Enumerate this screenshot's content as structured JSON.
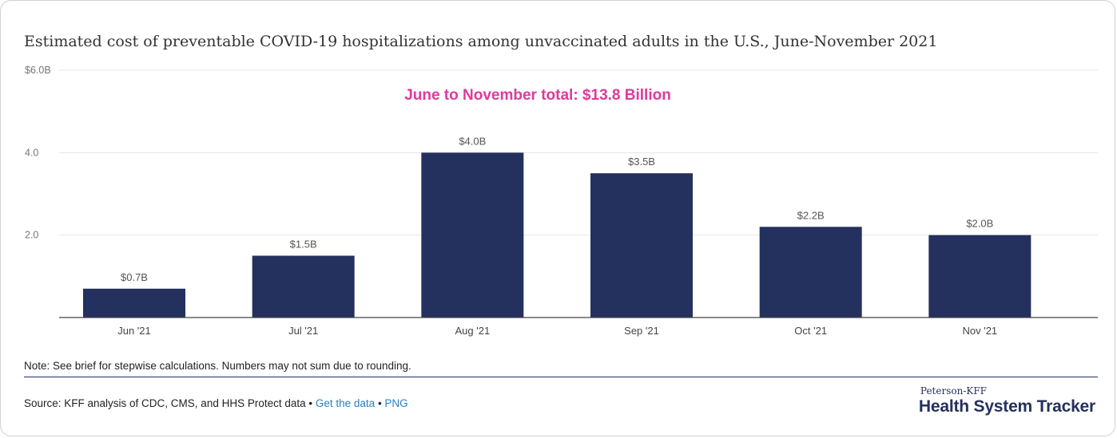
{
  "title": "Estimated cost of preventable COVID-19 hospitalizations among unvaccinated adults in the U.S., June-November 2021",
  "note": "Note: See brief for stepwise calculations. Numbers may not sum due to rounding.",
  "source": {
    "prefix": "Source: KFF analysis of CDC, CMS, and HHS Protect data",
    "sep1": " • ",
    "get_data_label": "Get the data",
    "sep2": " • ",
    "png_label": "PNG"
  },
  "brand": {
    "top": "Peterson-KFF",
    "main": "Health System Tracker"
  },
  "colors": {
    "bar": "#24305e",
    "annotation": "#e0399b",
    "grid": "#e6e6e6",
    "axis": "#444444",
    "tick_text": "#777777"
  },
  "chart_data": {
    "type": "bar",
    "categories": [
      "Jun '21",
      "Jul '21",
      "Aug '21",
      "Sep '21",
      "Oct '21",
      "Nov '21"
    ],
    "values": [
      0.7,
      1.5,
      4.0,
      3.5,
      2.2,
      2.0
    ],
    "data_labels": [
      "$0.7B",
      "$1.5B",
      "$4.0B",
      "$3.5B",
      "$2.2B",
      "$2.0B"
    ],
    "ylim": [
      0,
      6
    ],
    "yticks": [
      2,
      4,
      6
    ],
    "ytick_labels": [
      "2.0",
      "4.0",
      "$6.0B"
    ],
    "annotation": "June to November total: $13.8 Billion",
    "grid": true,
    "legend": "none"
  }
}
